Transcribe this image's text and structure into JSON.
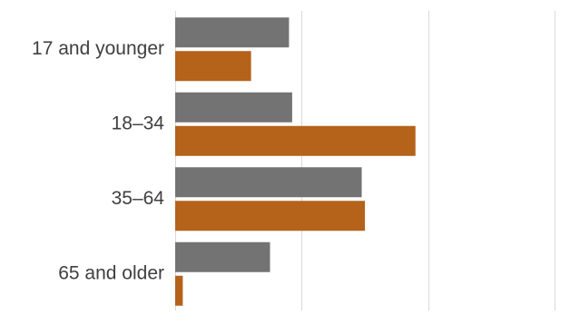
{
  "chart_data": {
    "type": "bar",
    "orientation": "horizontal",
    "title": "",
    "xlabel": "",
    "ylabel": "",
    "categories": [
      "17 and younger",
      "18–34",
      "35–64",
      "65 and older"
    ],
    "series": [
      {
        "color": "#737373",
        "values": [
          18,
          18.5,
          29.5,
          15
        ]
      },
      {
        "color": "#b5621a",
        "values": [
          12,
          38,
          30,
          1.2
        ]
      }
    ],
    "xlim": [
      0,
      60
    ],
    "grid_step": 20,
    "grid": true,
    "legend": "none",
    "tick_labels_visible": false
  }
}
